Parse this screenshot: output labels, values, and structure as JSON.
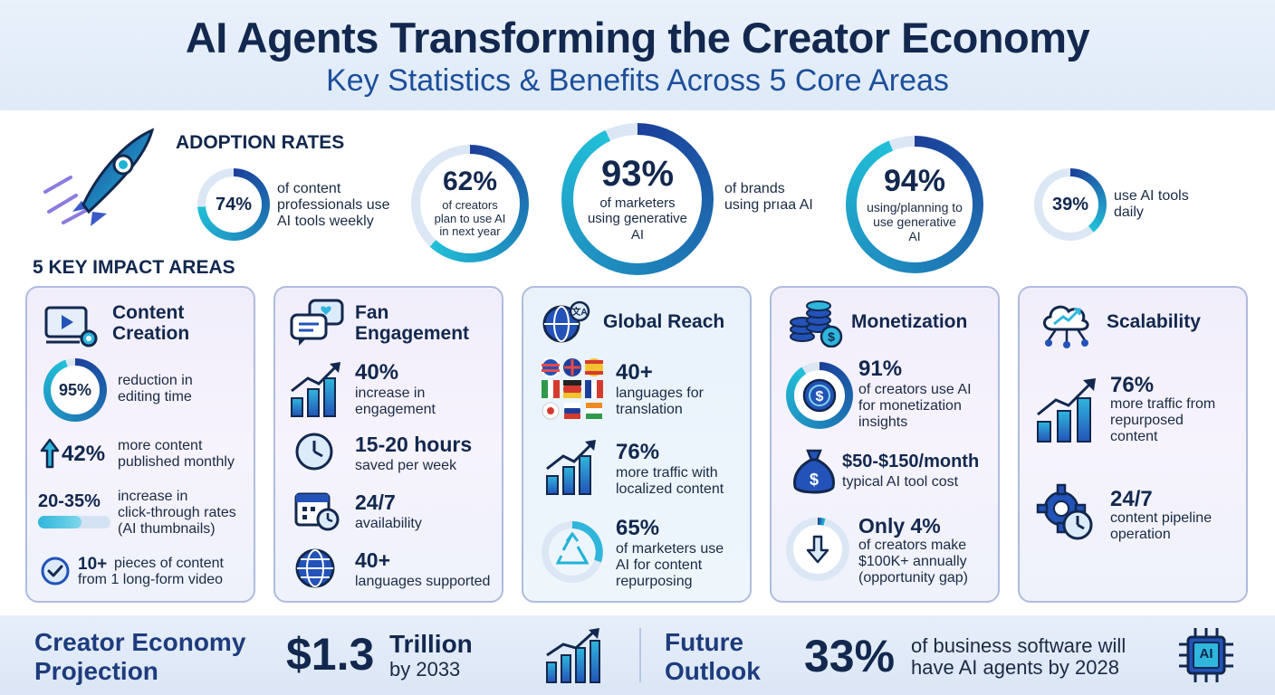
{
  "header": {
    "title": "AI Agents Transforming the Creator Economy",
    "subtitle": "Key Statistics & Benefits Across 5 Core Areas"
  },
  "adoption": {
    "label": "ADOPTION RATES",
    "stats": [
      {
        "value": "74%",
        "text_line1": "of content",
        "text_line2": "professionals use",
        "text_line3": "AI tools weekly",
        "fill": 0.74
      },
      {
        "value": "62%",
        "inner_line1": "of creators",
        "inner_line2": "plan to use AI",
        "inner_line3": "in next year",
        "fill": 0.62
      },
      {
        "value": "93%",
        "inner_line1": "of marketers",
        "inner_line2": "using generative",
        "inner_line3": "AI",
        "side_line1": "of brands",
        "side_line2": "using prıaa AI",
        "fill": 0.93
      },
      {
        "value": "94%",
        "inner_line1": "using/planning to",
        "inner_line2": "use generative",
        "inner_line3": "AI",
        "fill": 0.94
      },
      {
        "value": "39%",
        "text_line1": "use AI tools",
        "text_line2": "daily",
        "fill": 0.39
      }
    ]
  },
  "impact": {
    "label": "5 KEY IMPACT AREAS",
    "cards": [
      {
        "title_line1": "Content",
        "title_line2": "Creation",
        "rows": [
          {
            "value": "95%",
            "line1": "reduction in",
            "line2": "editing time",
            "fill": 0.95
          },
          {
            "value": "42%",
            "line1": "more content",
            "line2": "published monthly"
          },
          {
            "value": "20-35%",
            "line1": "increase in",
            "line2": "click-through rates",
            "line3": "(AI thumbnails)"
          },
          {
            "value": "10+",
            "line1": "pieces of content",
            "line2": "from 1 long-form video"
          }
        ]
      },
      {
        "title_line1": "Fan",
        "title_line2": "Engagement",
        "rows": [
          {
            "value": "40%",
            "line1": "increase in",
            "line2": "engagement"
          },
          {
            "value": "15-20 hours",
            "line1": "saved per week"
          },
          {
            "value": "24/7",
            "line1": "availability"
          },
          {
            "value": "40+",
            "line1": "languages supported"
          }
        ]
      },
      {
        "title_line1": "Global Reach",
        "rows": [
          {
            "value": "40+",
            "line1": "languages for",
            "line2": "translation"
          },
          {
            "value": "76%",
            "line1": "more traffic with",
            "line2": "localized content"
          },
          {
            "value": "65%",
            "line1": "of marketers use",
            "line2": "AI for content",
            "line3": "repurposing"
          }
        ]
      },
      {
        "title_line1": "Monetization",
        "rows": [
          {
            "value": "91%",
            "line1": "of creators use AI",
            "line2": "for monetization",
            "line3": "insights",
            "fill": 0.91
          },
          {
            "value": "$50-$150/month",
            "line1": "typical AI tool cost"
          },
          {
            "value": "Only 4%",
            "line1": "of creators make",
            "line2": "$100K+ annually",
            "line3": "(opportunity gap)",
            "fill": 0.04
          }
        ]
      },
      {
        "title_line1": "Scalability",
        "rows": [
          {
            "value": "76%",
            "line1": "more traffic from",
            "line2": "repurposed",
            "line3": "content"
          },
          {
            "value": "24/7",
            "line1": "content pipeline",
            "line2": "operation"
          }
        ]
      }
    ]
  },
  "footer": {
    "projection_line1": "Creator Economy",
    "projection_line2": "Projection",
    "projection_value": "$1.3",
    "projection_unit": "Trillion",
    "projection_year": "by 2033",
    "outlook_line1": "Future",
    "outlook_line2": "Outlook",
    "outlook_value": "33%",
    "outlook_line_a": "of business software will",
    "outlook_line_b": "have AI agents by 2028",
    "chip_label": "AI"
  },
  "colors": {
    "navy": "#12284e",
    "blue": "#1d4f9a",
    "cyan": "#1fb3d6",
    "ring_track": "#dbe7f5"
  },
  "icons": [
    "rocket-icon",
    "video-editing-icon",
    "chat-bubbles-icon",
    "globe-translate-icon",
    "coin-stack-icon",
    "cloud-network-icon",
    "up-arrow-icon",
    "check-circle-icon",
    "growth-chart-icon",
    "clock-icon",
    "calendar-clock-icon",
    "globe-icon",
    "flag-grid-icon",
    "recycle-icon",
    "dollar-coin-icon",
    "money-bag-icon",
    "down-arrow-icon",
    "gear-clock-icon",
    "ai-chip-icon"
  ]
}
